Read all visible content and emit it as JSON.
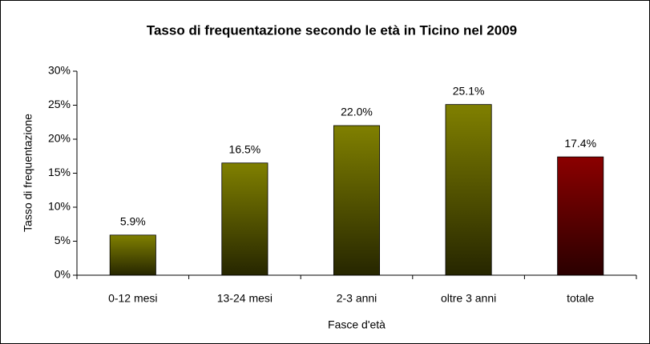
{
  "chart_data": {
    "type": "bar",
    "title": "Tasso di frequentazione secondo le età in Ticino nel 2009",
    "x_label": "Fasce d'età",
    "y_label": "Tasso di frequentazione",
    "categories": [
      "0-12 mesi",
      "13-24 mesi",
      "2-3 anni",
      "oltre 3 anni",
      "totale"
    ],
    "values": [
      5.9,
      16.5,
      22.0,
      25.1,
      17.4
    ],
    "value_labels": [
      "5.9%",
      "16.5%",
      "22.0%",
      "25.1%",
      "17.4%"
    ],
    "colors": [
      "#808000",
      "#808000",
      "#808000",
      "#808000",
      "#8b0000"
    ],
    "ylim": [
      0,
      30
    ],
    "yticks": [
      {
        "value": 0,
        "label": "0%"
      },
      {
        "value": 5,
        "label": "5%"
      },
      {
        "value": 10,
        "label": "10%"
      },
      {
        "value": 15,
        "label": "15%"
      },
      {
        "value": 20,
        "label": "20%"
      },
      {
        "value": 25,
        "label": "25%"
      },
      {
        "value": 30,
        "label": "30%"
      }
    ],
    "grid": false
  }
}
